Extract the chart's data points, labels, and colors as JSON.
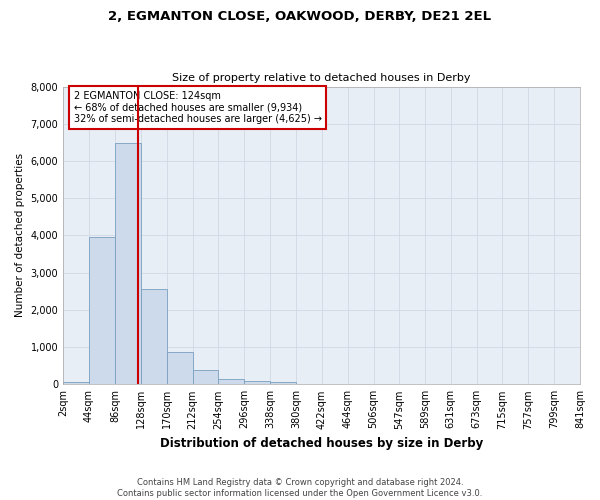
{
  "title_line1": "2, EGMANTON CLOSE, OAKWOOD, DERBY, DE21 2EL",
  "title_line2": "Size of property relative to detached houses in Derby",
  "xlabel": "Distribution of detached houses by size in Derby",
  "ylabel": "Number of detached properties",
  "property_size": 124,
  "property_label": "2 EGMANTON CLOSE: 124sqm",
  "annotation_line1": "← 68% of detached houses are smaller (9,934)",
  "annotation_line2": "32% of semi-detached houses are larger (4,625) →",
  "bar_color": "#cddaeb",
  "bar_edge_color": "#7a9fc0",
  "vline_color": "#cc0000",
  "annotation_box_color": "#cc0000",
  "grid_color": "#d0d8e4",
  "background_color": "#e8eef5",
  "ylim": [
    0,
    8000
  ],
  "yticks": [
    0,
    1000,
    2000,
    3000,
    4000,
    5000,
    6000,
    7000,
    8000
  ],
  "bin_edges": [
    2,
    44,
    86,
    128,
    170,
    212,
    254,
    296,
    338,
    380,
    422,
    464,
    506,
    547,
    589,
    631,
    673,
    715,
    757,
    799,
    841
  ],
  "bar_heights": [
    55,
    3960,
    6490,
    2560,
    870,
    390,
    140,
    80,
    50,
    0,
    0,
    0,
    0,
    0,
    0,
    0,
    0,
    0,
    0,
    0
  ],
  "footer_line1": "Contains HM Land Registry data © Crown copyright and database right 2024.",
  "footer_line2": "Contains public sector information licensed under the Open Government Licence v3.0."
}
